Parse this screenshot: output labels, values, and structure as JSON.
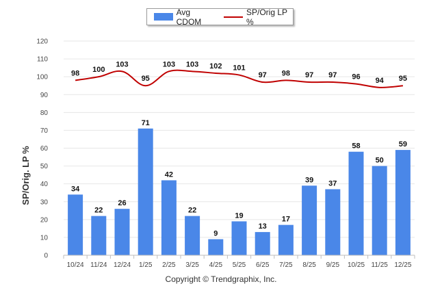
{
  "legend": {
    "bar_label": "Avg CDOM",
    "line_label": "SP/Orig LP %"
  },
  "copyright": "Copyright © Trendgraphix, Inc.",
  "chart_data": {
    "type": "bar",
    "categories": [
      "10/24",
      "11/24",
      "12/24",
      "1/25",
      "2/25",
      "3/25",
      "4/25",
      "5/25",
      "6/25",
      "7/25",
      "8/25",
      "9/25",
      "10/25",
      "11/25",
      "12/25"
    ],
    "series": [
      {
        "name": "Avg CDOM",
        "type": "bar",
        "color": "#4a87e8",
        "values": [
          34,
          22,
          26,
          71,
          42,
          22,
          9,
          19,
          13,
          17,
          39,
          37,
          58,
          50,
          59
        ]
      },
      {
        "name": "SP/Orig LP %",
        "type": "line",
        "color": "#c00000",
        "values": [
          98,
          100,
          103,
          95,
          103,
          103,
          102,
          101,
          97,
          98,
          97,
          97,
          96,
          94,
          95
        ]
      }
    ],
    "ylabel": "SP/Orig. LP %",
    "ylim": [
      0,
      120
    ],
    "yticks": [
      0,
      10,
      20,
      30,
      40,
      50,
      60,
      70,
      80,
      90,
      100,
      110,
      120
    ],
    "grid": true,
    "legend_position": "top"
  }
}
